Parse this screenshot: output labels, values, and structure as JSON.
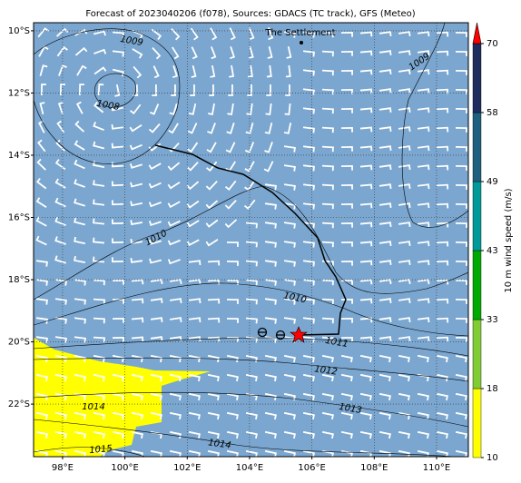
{
  "map": {
    "title": "Forecast of 2023040206 (f078), Sources: GDACS (TC track), GFS (Meteo)",
    "place": "The Settlement",
    "xlim": [
      97.07,
      111.02
    ],
    "ylim": [
      -23.69,
      -9.74
    ],
    "xticks": [
      {
        "value": 98,
        "label": "98°E"
      },
      {
        "value": 100,
        "label": "100°E"
      },
      {
        "value": 102,
        "label": "102°E"
      },
      {
        "value": 104,
        "label": "104°E"
      },
      {
        "value": 106,
        "label": "106°E"
      },
      {
        "value": 108,
        "label": "108°E"
      },
      {
        "value": 110,
        "label": "110°E"
      }
    ],
    "yticks": [
      {
        "value": -10,
        "label": "10°S"
      },
      {
        "value": -12,
        "label": "12°S"
      },
      {
        "value": -14,
        "label": "14°S"
      },
      {
        "value": -16,
        "label": "16°S"
      },
      {
        "value": -18,
        "label": "18°S"
      },
      {
        "value": -20,
        "label": "20°S"
      },
      {
        "value": -22,
        "label": "22°S"
      }
    ],
    "grid": true,
    "contour_labels": [
      1009,
      1009,
      1008,
      1010,
      1010,
      1011,
      1012,
      1013,
      1014,
      1014,
      1015
    ]
  },
  "colorbar": {
    "label": "10 m wind speed (m/s)",
    "ticks": [
      10,
      18,
      33,
      43,
      49,
      58,
      70
    ],
    "colors": [
      "#ffff00",
      "#80cc33",
      "#00aa00",
      "#009999",
      "#1f5f80",
      "#1f2c5e"
    ],
    "extend_color": "#ff0000"
  }
}
